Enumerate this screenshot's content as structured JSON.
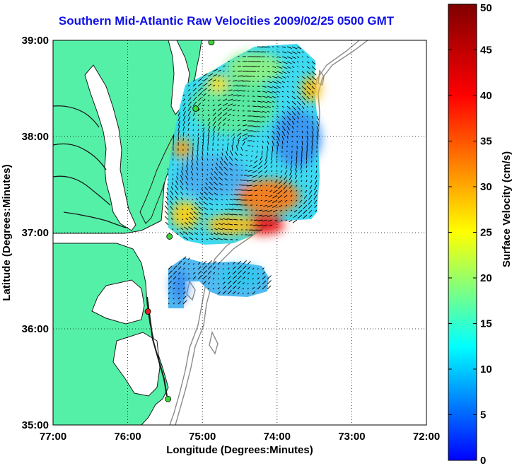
{
  "title": "Southern Mid-Atlantic Raw Velocities 2009/02/25 0500 GMT",
  "colors": {
    "title": "#1010e8",
    "land": "#55f0a8",
    "water": "#ffffff",
    "coastline": "#1a1a1a",
    "bathymetry": "#8a8a8a",
    "station_green": "#39d939",
    "station_red": "#e02020",
    "vector": "#000000"
  },
  "map": {
    "x_label": "Longitude (Degrees:Minutes)",
    "y_label": "Latitude (Degrees:Minutes)",
    "lon_range": [
      -77,
      -72
    ],
    "lat_range": [
      35,
      39
    ],
    "lon_ticks": [
      {
        "value": -77,
        "label": "77:00"
      },
      {
        "value": -76,
        "label": "76:00"
      },
      {
        "value": -75,
        "label": "75:00"
      },
      {
        "value": -74,
        "label": "74:00"
      },
      {
        "value": -73,
        "label": "73:00"
      },
      {
        "value": -72,
        "label": "72:00"
      }
    ],
    "lat_ticks": [
      {
        "value": 39,
        "label": "39:00"
      },
      {
        "value": 38,
        "label": "38:00"
      },
      {
        "value": 37,
        "label": "37:00"
      },
      {
        "value": 36,
        "label": "36:00"
      },
      {
        "value": 35,
        "label": "35:00"
      }
    ],
    "grid": "dotted",
    "stations": [
      {
        "lon": -74.88,
        "lat": 38.98,
        "color": "green"
      },
      {
        "lon": -75.09,
        "lat": 38.29,
        "color": "green"
      },
      {
        "lon": -75.44,
        "lat": 36.96,
        "color": "green"
      },
      {
        "lon": -75.73,
        "lat": 36.18,
        "color": "red"
      },
      {
        "lon": -75.46,
        "lat": 35.27,
        "color": "green"
      }
    ]
  },
  "colorbar": {
    "label": "Surface Velocity (cm/s)",
    "min": 0,
    "max": 50,
    "ticks": [
      {
        "value": 50,
        "label": "50"
      },
      {
        "value": 45,
        "label": "45"
      },
      {
        "value": 40,
        "label": "40"
      },
      {
        "value": 35,
        "label": "35"
      },
      {
        "value": 30,
        "label": "30"
      },
      {
        "value": 25,
        "label": "25"
      },
      {
        "value": 20,
        "label": "20"
      },
      {
        "value": 15,
        "label": "15"
      },
      {
        "value": 10,
        "label": "10"
      },
      {
        "value": 5,
        "label": "5"
      },
      {
        "value": 0,
        "label": "0"
      }
    ],
    "colormap": [
      "#0000ff",
      "#00ffff",
      "#ffff00",
      "#ff0000",
      "#800000"
    ]
  }
}
